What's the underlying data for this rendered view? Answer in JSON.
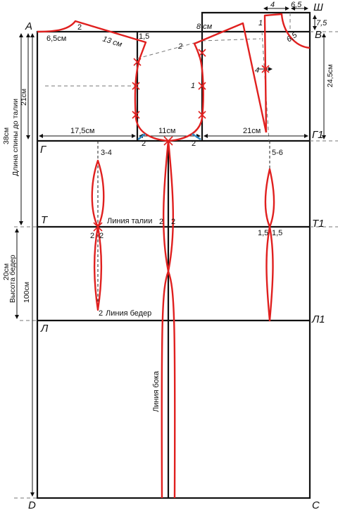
{
  "colors": {
    "frame": "#111111",
    "pattern": "#e0201f",
    "marker": "#2e86c1"
  },
  "points": {
    "A": "А",
    "Sh": "Ш",
    "V": "В",
    "G": "Г",
    "G1": "Г1",
    "T": "Т",
    "T1": "Т1",
    "L": "Л",
    "L1": "Л1",
    "D": "D",
    "C": "С"
  },
  "dims": {
    "back_neck_width": "6,5см",
    "shoulder_back": "13 см",
    "back_width": "17,5см",
    "armhole_width": "11см",
    "front_width": "21см",
    "front_neck_4": "4",
    "front_neck_65": "6,5",
    "front_neck_75": "7,5",
    "front_neck_65_slant": "6,5",
    "front_height": "24,5см",
    "back_armhole_height": "21см",
    "back_length_value": "38см",
    "back_length_label": "Длина спины до талии",
    "hip_height_value": "20см",
    "hip_height_label": "Высота бедер",
    "full_length": "100см",
    "shoulder_8": "8 см"
  },
  "marks": {
    "m2_neck": "2",
    "m15_left": "1,5",
    "m2_shoulder": "2",
    "m1": "1",
    "m1_front": "1",
    "m4_front": "4",
    "m2_arm_l": "2",
    "m2_arm_r": "2",
    "m34": "3-4",
    "m56": "5-6",
    "m2_waist_l": "2",
    "m2_waist_r": "2",
    "m2_side_l": "2",
    "m2_side_r": "2",
    "m15_f_l": "1,5",
    "m15_f_r": "1,5",
    "m2_hip": "2"
  },
  "lines": {
    "waist": "Линия талии",
    "hip": "Линия  бедер",
    "side": "Линия бока"
  }
}
